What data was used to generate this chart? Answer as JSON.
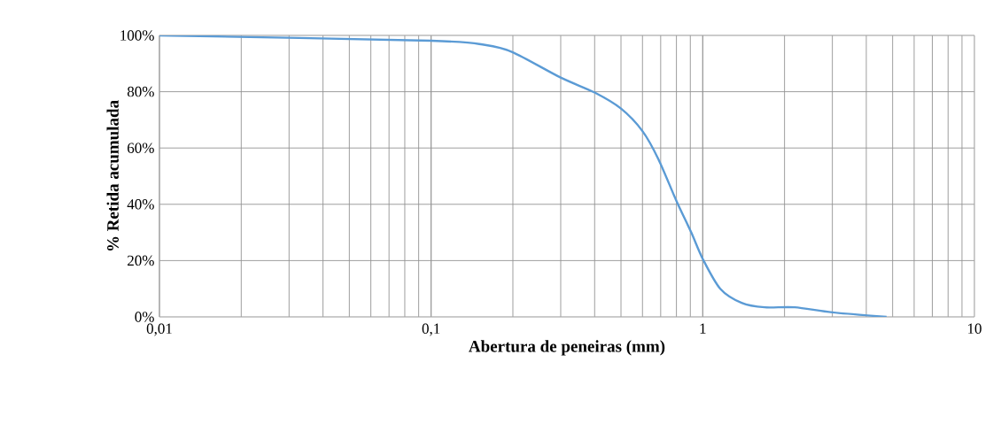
{
  "chart_data": {
    "type": "line",
    "xlabel": "Abertura de peneiras (mm)",
    "ylabel": "% Retida acumulada",
    "log": "x",
    "grid": true,
    "marker": "none",
    "line_style": "solid",
    "xlim": [
      0.01,
      10
    ],
    "ylim": [
      0,
      100
    ],
    "xticks": [
      {
        "value": 0.01,
        "label": "0,01"
      },
      {
        "value": 0.1,
        "label": "0,1"
      },
      {
        "value": 1,
        "label": "1"
      },
      {
        "value": 10,
        "label": "10"
      }
    ],
    "yticks": [
      {
        "value": 0,
        "label": "0%"
      },
      {
        "value": 20,
        "label": "20%"
      },
      {
        "value": 40,
        "label": "40%"
      },
      {
        "value": 60,
        "label": "60%"
      },
      {
        "value": 80,
        "label": "80%"
      },
      {
        "value": 100,
        "label": "100%"
      }
    ],
    "series": [
      {
        "color": "#5b9bd5",
        "x": [
          0.01,
          0.1,
          0.158,
          0.2,
          0.3,
          0.4,
          0.5,
          0.6,
          0.687,
          0.8,
          0.907,
          1.0,
          1.16,
          1.39,
          1.69,
          2.18,
          3.0,
          4.75
        ],
        "values": [
          100,
          98.1,
          96.6,
          94,
          85,
          79.7,
          74,
          66,
          56,
          41.2,
          30,
          20.6,
          10,
          5,
          3.4,
          3.4,
          1.6,
          0
        ]
      }
    ]
  }
}
